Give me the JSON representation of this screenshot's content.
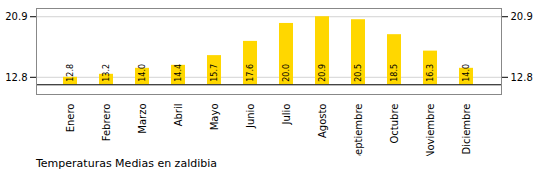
{
  "chart_data": {
    "type": "bar",
    "title": "Temperaturas Medias en zaldibia",
    "categories": [
      "Enero",
      "Febrero",
      "Marzo",
      "Abril",
      "Mayo",
      "Junio",
      "Julio",
      "Agosto",
      "Septiembre",
      "Octubre",
      "Noviembre",
      "Diciembre"
    ],
    "values": [
      12.8,
      13.2,
      14.0,
      14.4,
      15.7,
      17.6,
      20.0,
      20.9,
      20.5,
      18.5,
      16.3,
      14.0
    ],
    "baseline": 11.8,
    "color": "#FFD700",
    "ylim": [
      10.5,
      22.0
    ],
    "yticks": [
      12.8,
      20.9
    ],
    "grid": true,
    "data_labels": true
  }
}
